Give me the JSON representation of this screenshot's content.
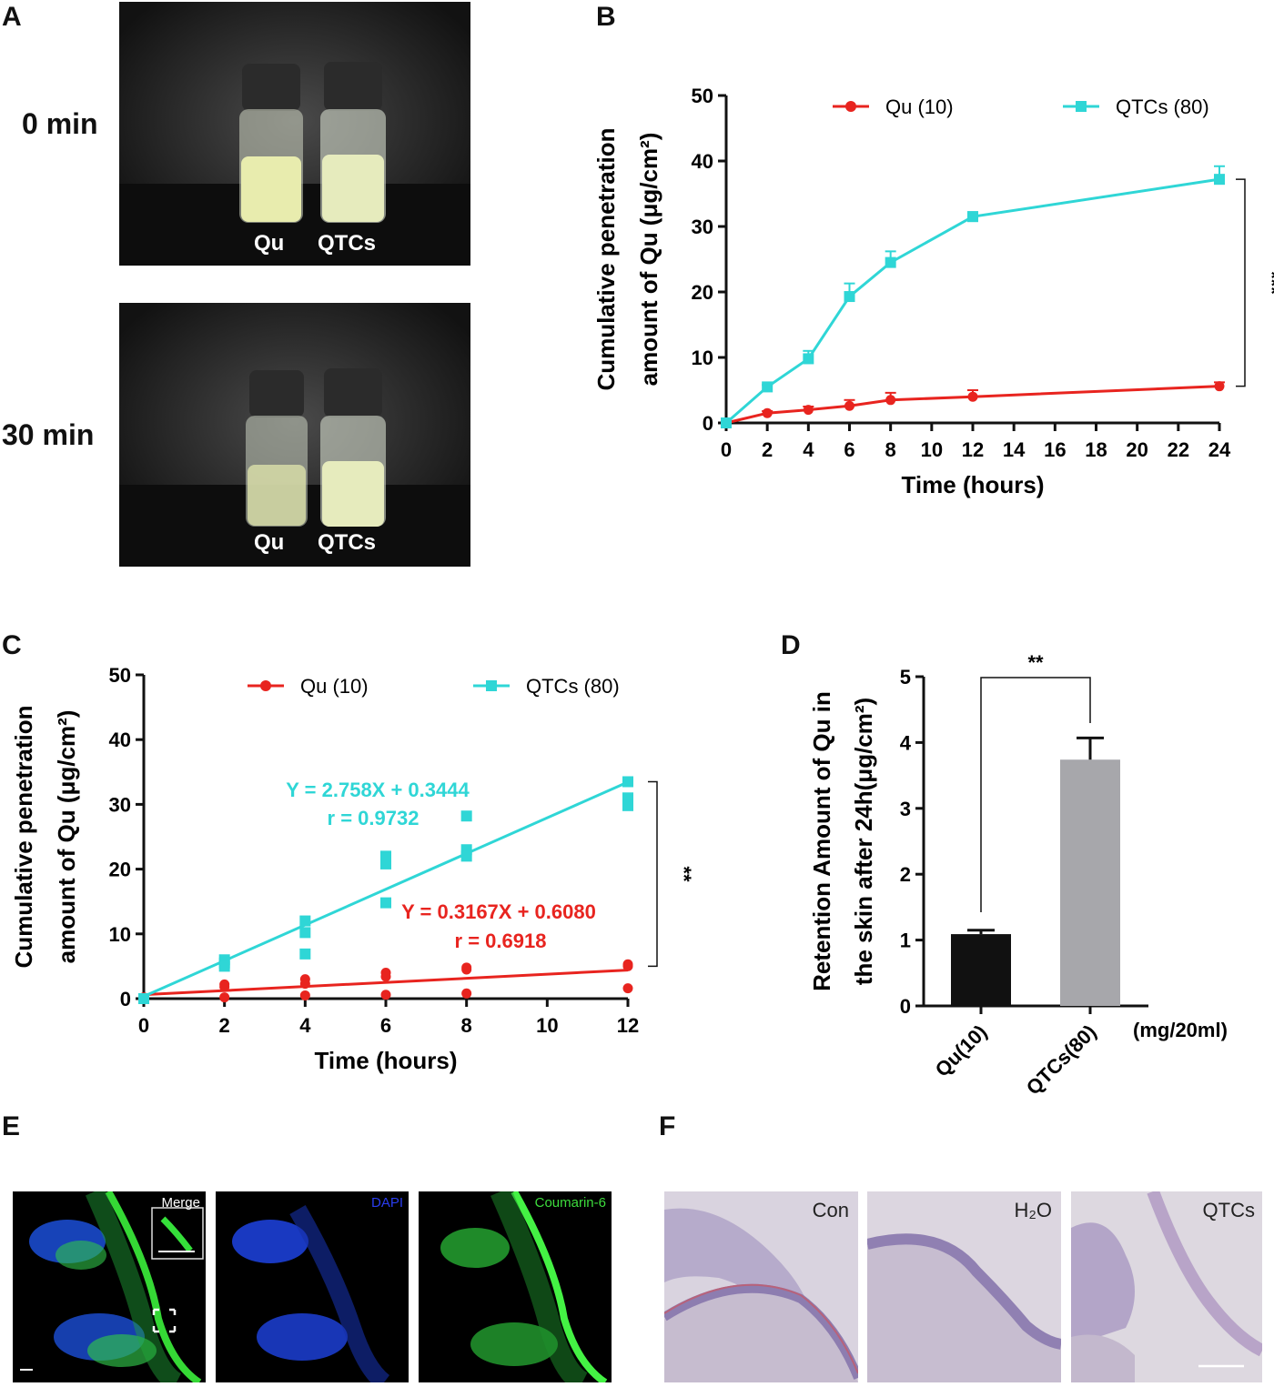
{
  "panels": {
    "A": "A",
    "B": "B",
    "C": "C",
    "D": "D",
    "E": "E",
    "F": "F"
  },
  "panel_a": {
    "times": [
      "0 min",
      "30 min"
    ],
    "vial_labels": [
      "Qu",
      "QTCs"
    ]
  },
  "colors": {
    "qu": "#e8241f",
    "qtcs": "#2fd6d6",
    "bar_qu": "#111111",
    "bar_qtcs": "#a7a7ab"
  },
  "chart_data": [
    {
      "panel": "B",
      "type": "line",
      "xlabel": "Time (hours)",
      "ylabel_line1": "Cumulative penetration",
      "ylabel_line2": "amount of Qu (μg/cm²)",
      "xlim": [
        0,
        24
      ],
      "ylim": [
        0,
        50
      ],
      "xticks": [
        0,
        2,
        4,
        6,
        8,
        10,
        12,
        14,
        16,
        18,
        20,
        22,
        24
      ],
      "yticks": [
        0,
        10,
        20,
        30,
        40,
        50
      ],
      "series": [
        {
          "name": "Qu (10)",
          "marker": "circle",
          "x": [
            0,
            2,
            4,
            6,
            8,
            12,
            24
          ],
          "y": [
            0,
            1.5,
            2,
            2.6,
            3.5,
            4,
            5.6
          ],
          "err": [
            0,
            0.3,
            0.5,
            0.9,
            1.1,
            1.0,
            0.6
          ]
        },
        {
          "name": "QTCs (80)",
          "marker": "square",
          "x": [
            0,
            2,
            4,
            6,
            8,
            12,
            24
          ],
          "y": [
            0,
            5.5,
            9.8,
            19.3,
            24.5,
            31.5,
            37.2
          ],
          "err": [
            0,
            0.3,
            1.2,
            2.0,
            1.7,
            0.7,
            2.0
          ]
        }
      ],
      "significance": "***"
    },
    {
      "panel": "C",
      "type": "scatter",
      "xlabel": "Time (hours)",
      "ylabel_line1": "Cumulative penetration",
      "ylabel_line2": "amount of Qu (μg/cm²)",
      "xlim": [
        0,
        12
      ],
      "ylim": [
        0,
        50
      ],
      "xticks": [
        0,
        2,
        4,
        6,
        8,
        10,
        12
      ],
      "yticks": [
        0,
        10,
        20,
        30,
        40,
        50
      ],
      "series": [
        {
          "name": "Qu (10)",
          "marker": "circle",
          "points": [
            [
              0,
              0.2
            ],
            [
              2,
              2.2
            ],
            [
              2,
              1.8
            ],
            [
              2,
              0.2
            ],
            [
              4,
              3.0
            ],
            [
              4,
              2.3
            ],
            [
              4,
              0.5
            ],
            [
              6,
              4.0
            ],
            [
              6,
              3.4
            ],
            [
              6,
              0.6
            ],
            [
              8,
              4.8
            ],
            [
              8,
              4.5
            ],
            [
              8,
              0.8
            ],
            [
              12,
              5.3
            ],
            [
              12,
              5.0
            ],
            [
              12,
              1.6
            ]
          ],
          "fit": {
            "slope": 0.3167,
            "intercept": 0.608
          }
        },
        {
          "name": "QTCs (80)",
          "marker": "square",
          "points": [
            [
              0,
              0
            ],
            [
              2,
              6.0
            ],
            [
              2,
              5.5
            ],
            [
              2,
              5.0
            ],
            [
              4,
              12.0
            ],
            [
              4,
              10.2
            ],
            [
              4,
              6.9
            ],
            [
              6,
              22.0
            ],
            [
              6,
              20.8
            ],
            [
              6,
              14.8
            ],
            [
              8,
              28.2
            ],
            [
              8,
              23.0
            ],
            [
              8,
              22.0
            ],
            [
              12,
              33.5
            ],
            [
              12,
              31.0
            ],
            [
              12,
              29.8
            ]
          ],
          "fit": {
            "slope": 2.758,
            "intercept": 0.3444
          }
        }
      ],
      "equations": {
        "qtcs_eq": "Y = 2.758X + 0.3444",
        "qtcs_r": "r = 0.9732",
        "qu_eq": "Y = 0.3167X + 0.6080",
        "qu_r": "r = 0.6918"
      },
      "significance": "**"
    },
    {
      "panel": "D",
      "type": "bar",
      "categories": [
        "Qu(10)",
        "QTCs(80)"
      ],
      "values": [
        1.09,
        3.74
      ],
      "err": [
        0.06,
        0.33
      ],
      "unit_label": "(mg/20ml)",
      "ylabel_line1": "Retention Amount of Qu in",
      "ylabel_line2": "the skin after 24h(μg/cm²)",
      "ylim": [
        0,
        5
      ],
      "yticks": [
        0,
        1,
        2,
        3,
        4,
        5
      ],
      "significance": "**"
    }
  ],
  "panel_e": {
    "labels": [
      "Merge",
      "DAPI",
      "Coumarin-6"
    ]
  },
  "panel_f": {
    "labels": [
      "Con",
      "H₂O",
      "QTCs"
    ]
  }
}
